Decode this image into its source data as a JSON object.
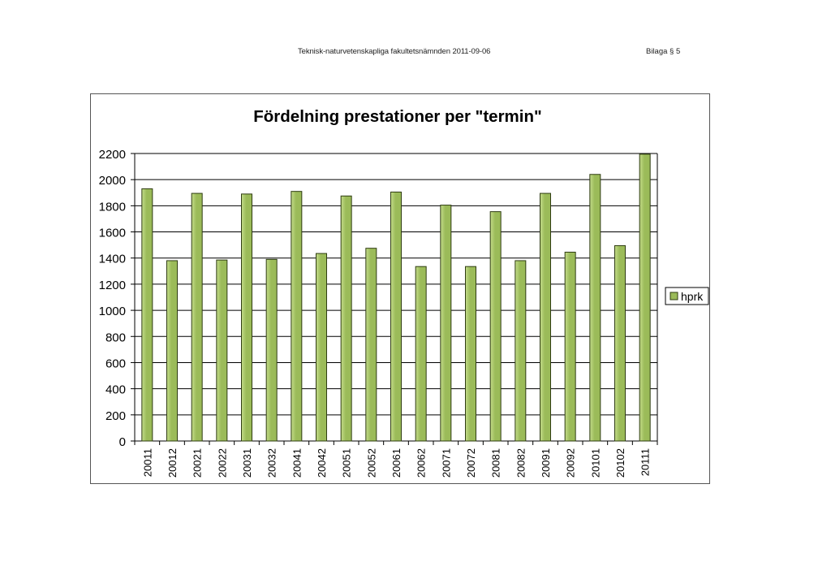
{
  "header": {
    "document_title": "Teknisk-naturvetenskapliga fakultetsnämnden 2011-09-06",
    "attachment_label": "Bilaga § 5"
  },
  "colors": {
    "bar_fill": "#9bbb59",
    "bar_fill_light": "#c4dc8a",
    "bar_stroke": "#2f3d12",
    "grid": "#000000"
  },
  "chart_data": {
    "type": "bar",
    "title": "Fördelning prestationer per \"termin\"",
    "xlabel": "",
    "ylabel": "",
    "ylim": [
      0,
      2200
    ],
    "yticks": [
      0,
      200,
      400,
      600,
      800,
      1000,
      1200,
      1400,
      1600,
      1800,
      2000,
      2200
    ],
    "grid": true,
    "legend_position": "right",
    "categories": [
      "20011",
      "20012",
      "20021",
      "20022",
      "20031",
      "20032",
      "20041",
      "20042",
      "20051",
      "20052",
      "20061",
      "20062",
      "20071",
      "20072",
      "20081",
      "20082",
      "20091",
      "20092",
      "20101",
      "20102",
      "20111"
    ],
    "series": [
      {
        "name": "hprk",
        "values": [
          1930,
          1380,
          1895,
          1385,
          1890,
          1390,
          1910,
          1435,
          1875,
          1475,
          1905,
          1335,
          1805,
          1335,
          1755,
          1380,
          1895,
          1445,
          2040,
          1495,
          2195
        ]
      }
    ]
  }
}
